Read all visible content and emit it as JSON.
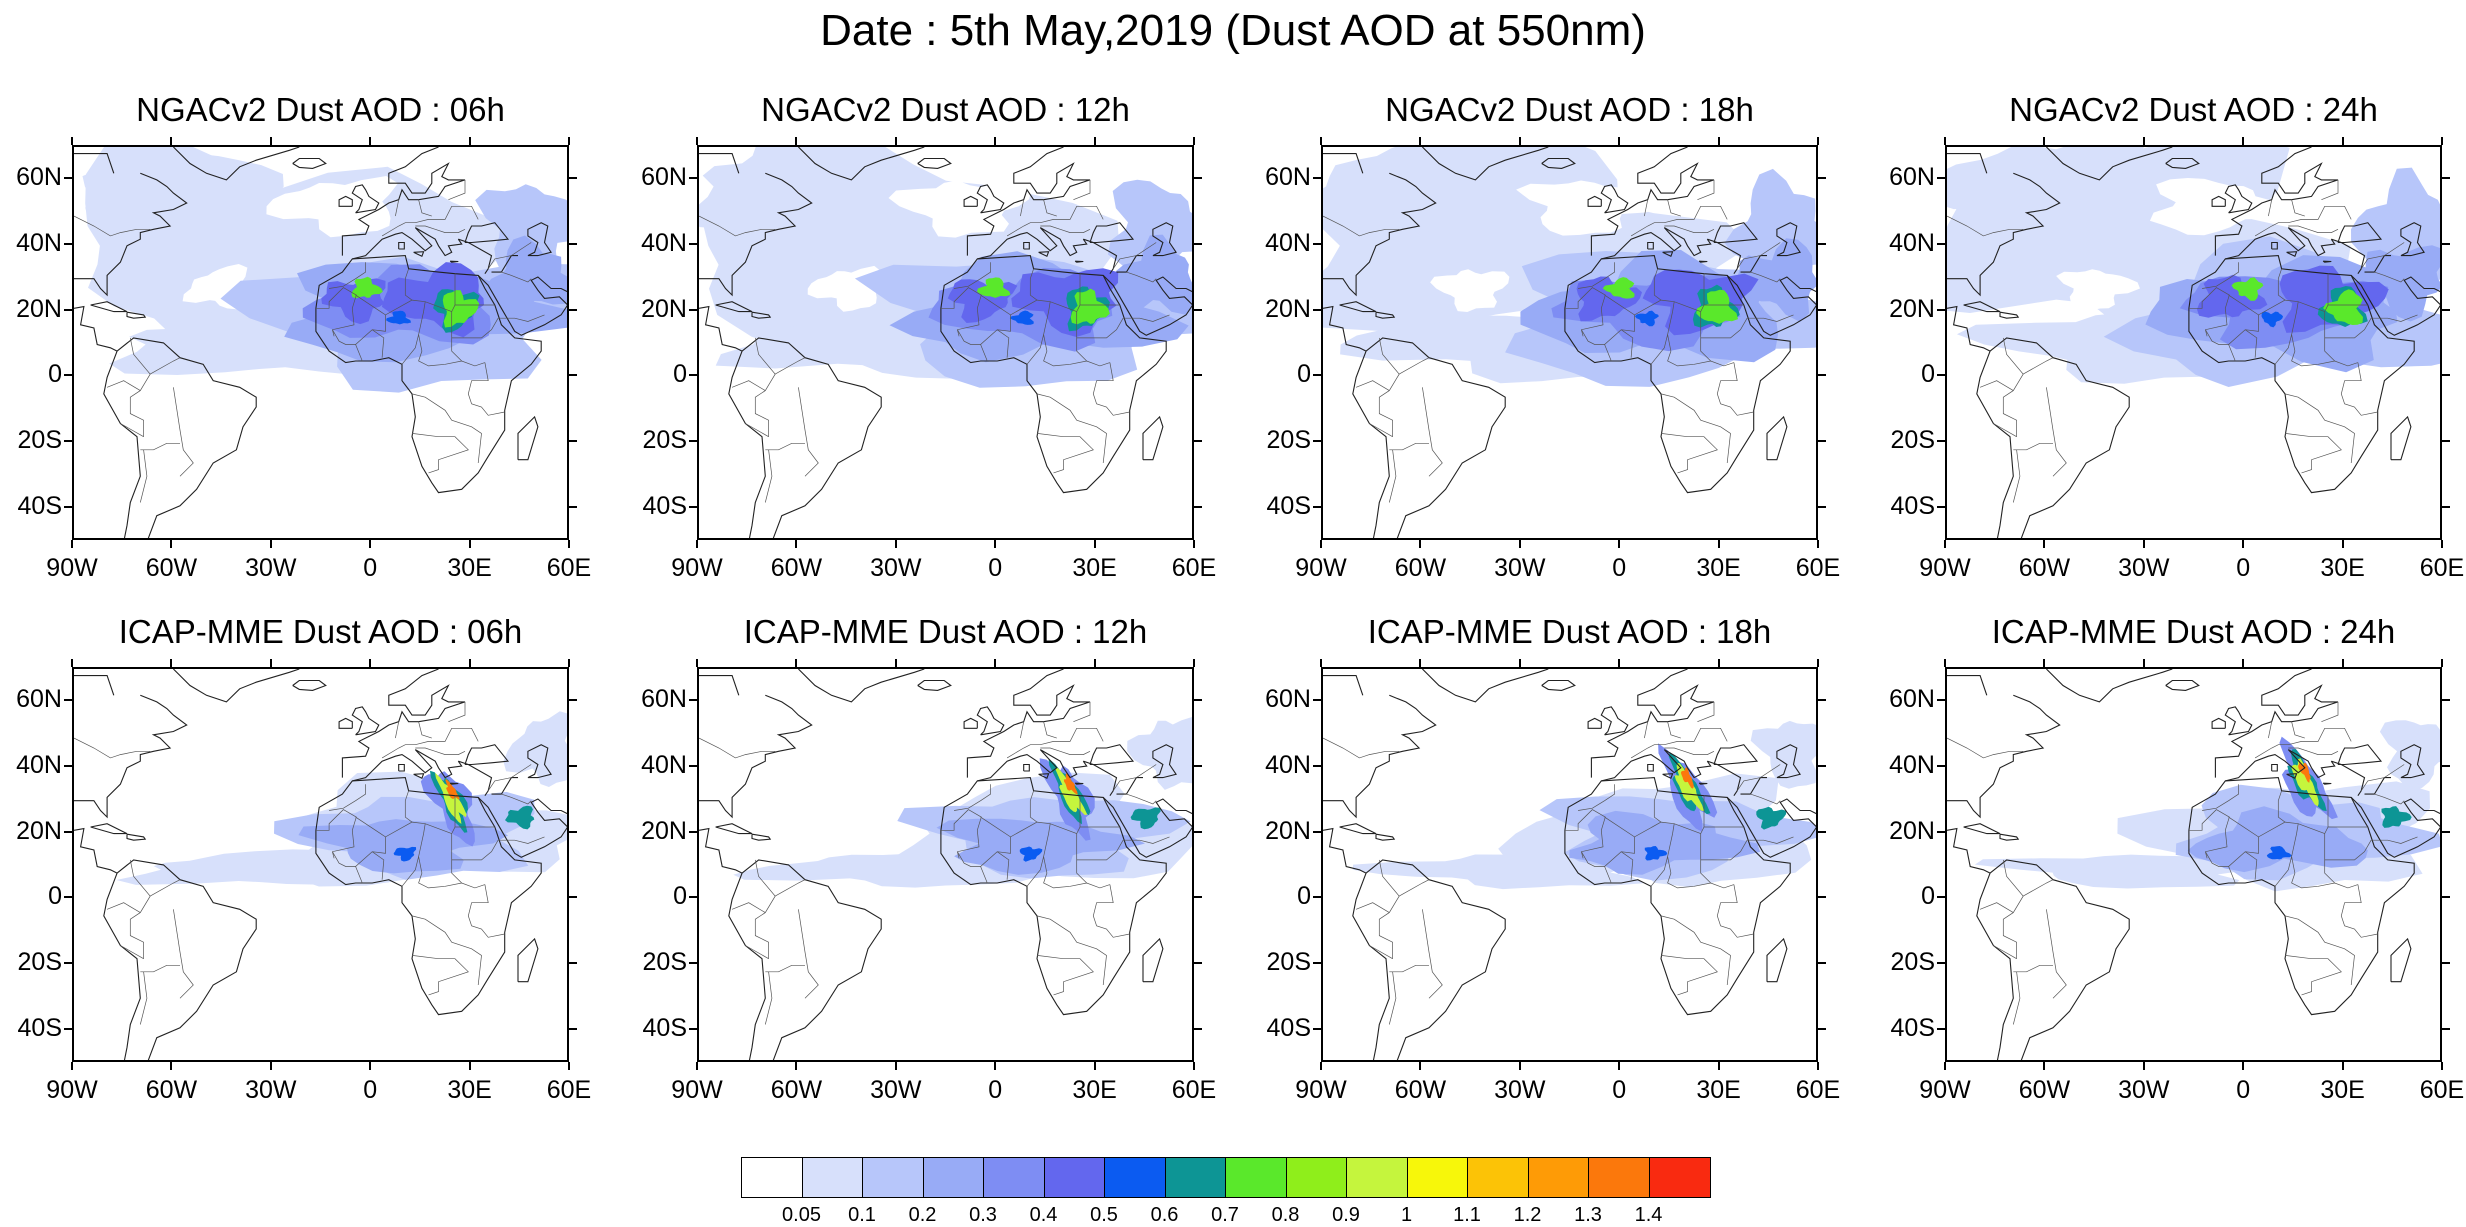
{
  "title": "Date : 5th May,2019 (Dust AOD at 550nm)",
  "panels": [
    {
      "title": "NGACv2 Dust AOD : 06h",
      "model": "ngac"
    },
    {
      "title": "NGACv2 Dust AOD : 12h",
      "model": "ngac"
    },
    {
      "title": "NGACv2 Dust AOD : 18h",
      "model": "ngac"
    },
    {
      "title": "NGACv2 Dust AOD : 24h",
      "model": "ngac"
    },
    {
      "title": "ICAP-MME Dust AOD : 06h",
      "model": "icap"
    },
    {
      "title": "ICAP-MME Dust AOD : 12h",
      "model": "icap"
    },
    {
      "title": "ICAP-MME Dust AOD : 18h",
      "model": "icap"
    },
    {
      "title": "ICAP-MME Dust AOD : 24h",
      "model": "icap"
    }
  ],
  "lat_labels": [
    "60N",
    "40N",
    "20N",
    "0",
    "20S",
    "40S"
  ],
  "lon_labels": [
    "90W",
    "60W",
    "30W",
    "0",
    "30E",
    "60E"
  ],
  "map_extent": {
    "lon_min": -90,
    "lon_max": 60,
    "lat_min": -50,
    "lat_max": 70
  },
  "colorbar": {
    "colors": [
      "#ffffff",
      "#d7e0fb",
      "#b7c6fa",
      "#98abf6",
      "#7e8df3",
      "#6367ee",
      "#0b5bf1",
      "#0d9595",
      "#5ae82b",
      "#8fee1b",
      "#c5f53d",
      "#f7f70a",
      "#fcc306",
      "#fe9b06",
      "#fb780c",
      "#f92a10"
    ],
    "labels": [
      "0.05",
      "0.1",
      "0.2",
      "0.3",
      "0.4",
      "0.5",
      "0.6",
      "0.7",
      "0.8",
      "0.9",
      "1",
      "1.1",
      "1.2",
      "1.3",
      "1.4"
    ]
  }
}
